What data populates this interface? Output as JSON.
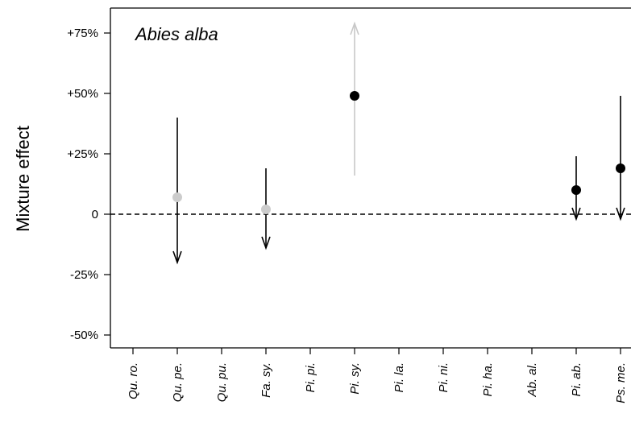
{
  "chart_data": {
    "type": "scatter",
    "title": "Abies alba",
    "ylabel": "Mixture effect",
    "xlabel": "",
    "ylim": [
      -55,
      85
    ],
    "grid": false,
    "yticks": [
      {
        "value": 75,
        "label": "+75%"
      },
      {
        "value": 50,
        "label": "+50%"
      },
      {
        "value": 25,
        "label": "+25%"
      },
      {
        "value": 0,
        "label": "0"
      },
      {
        "value": -25,
        "label": "-25%"
      },
      {
        "value": -50,
        "label": "-50%"
      }
    ],
    "categories": [
      "Qu. ro.",
      "Qu. pe.",
      "Qu. pu.",
      "Fa. sy.",
      "Pi. pi.",
      "Pi. sy.",
      "Pi. la.",
      "Pi. ni.",
      "Pi. ha.",
      "Ab. al.",
      "Pi. ab.",
      "Ps. me."
    ],
    "reference_line": 0,
    "points": [
      {
        "category": "Qu. pe.",
        "value": 7,
        "interval": [
          -20,
          40
        ],
        "significant": false,
        "arrow": "down"
      },
      {
        "category": "Fa. sy.",
        "value": 2,
        "interval": [
          -14,
          19
        ],
        "significant": false,
        "arrow": "down"
      },
      {
        "category": "Pi. sy.",
        "value": 49,
        "interval": [
          16,
          79
        ],
        "significant": true,
        "arrow": "up"
      },
      {
        "category": "Pi. ab.",
        "value": 10,
        "interval": [
          -2,
          24
        ],
        "significant": true,
        "arrow": "down"
      },
      {
        "category": "Ps. me.",
        "value": 19,
        "interval": [
          -2,
          49
        ],
        "significant": true,
        "arrow": "down"
      }
    ],
    "colors": {
      "significant_point": "#000000",
      "nonsignificant_point": "#cccccc",
      "arrow_dark": "#000000",
      "arrow_light": "#c8c8c8",
      "axis": "#000000"
    }
  }
}
